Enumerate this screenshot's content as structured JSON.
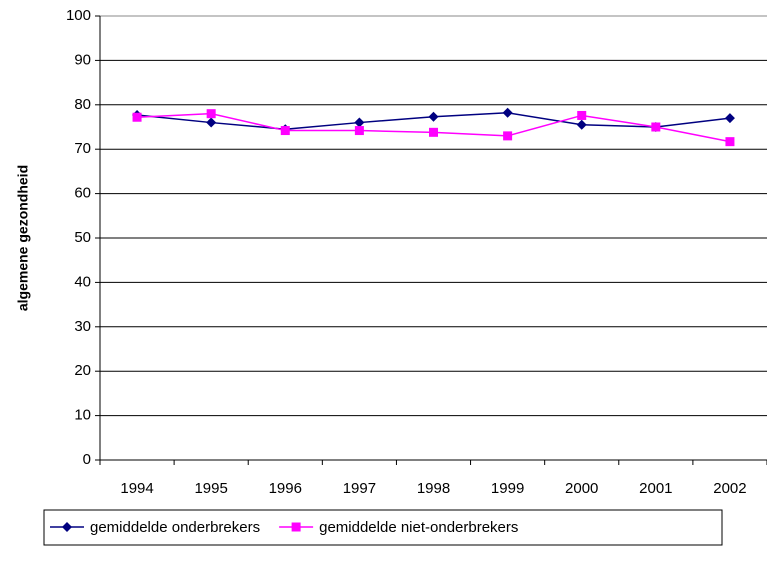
{
  "chart_data": {
    "type": "line",
    "y_label": "algemene gezondheid",
    "categories": [
      "1994",
      "1995",
      "1996",
      "1997",
      "1998",
      "1999",
      "2000",
      "2001",
      "2002"
    ],
    "series": [
      {
        "name": "gemiddelde onderbrekers",
        "color": "#000080",
        "marker": "diamond",
        "values": [
          77.7,
          76,
          74.5,
          76,
          77.3,
          78.2,
          75.5,
          75,
          77
        ]
      },
      {
        "name": "gemiddelde niet-onderbrekers",
        "color": "#ff00ff",
        "marker": "square",
        "values": [
          77.2,
          78,
          74.2,
          74.2,
          73.8,
          73,
          77.6,
          75,
          71.7
        ]
      }
    ],
    "ylim": [
      0,
      100
    ],
    "yticks": [
      0,
      10,
      20,
      30,
      40,
      50,
      60,
      70,
      80,
      90,
      100
    ],
    "grid": true,
    "legend": "bottom"
  }
}
